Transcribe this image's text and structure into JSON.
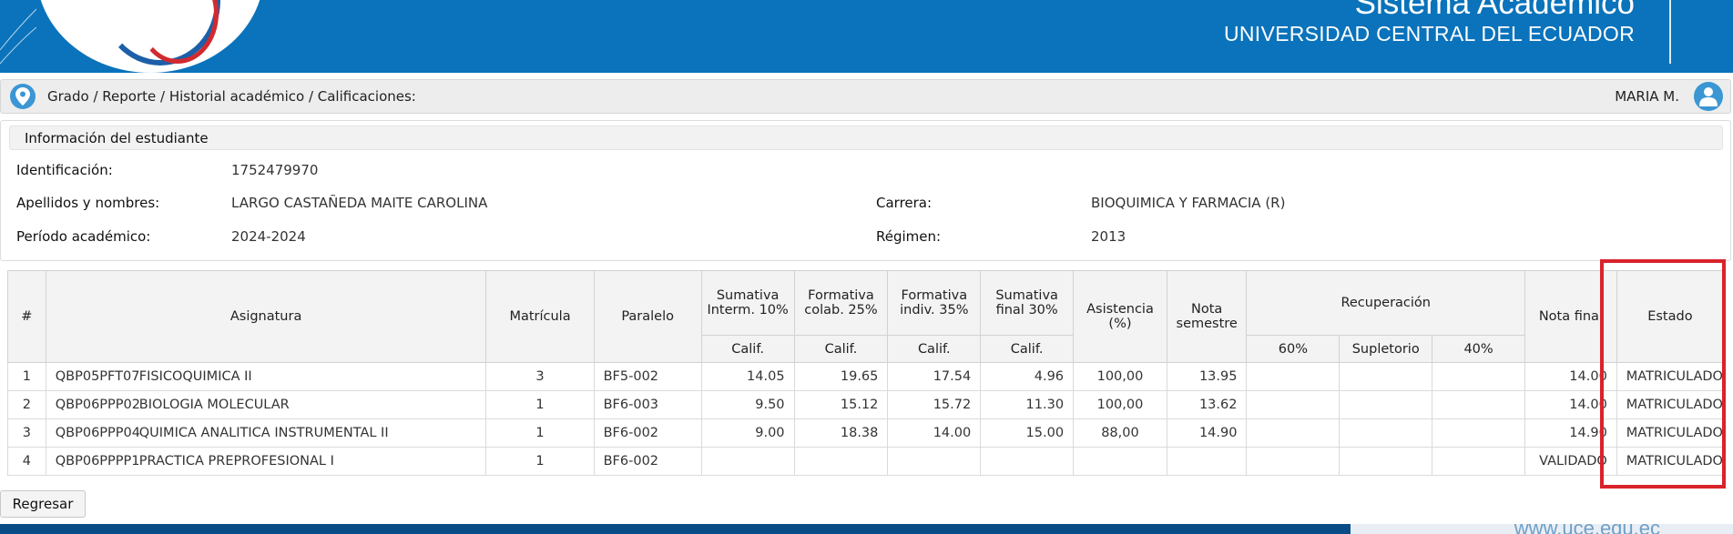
{
  "header": {
    "system_title": "Sistema Académico",
    "university": "UNIVERSIDAD CENTRAL DEL ECUADOR",
    "brand_color": "#0a73bb"
  },
  "breadcrumb": {
    "path": "Grado / Reporte / Historial académico / Calificaciones:",
    "user": "MARIA M."
  },
  "student_info": {
    "section_title": "Información del estudiante",
    "identificacion_label": "Identificación:",
    "identificacion": "1752479970",
    "nombres_label": "Apellidos y nombres:",
    "nombres": "LARGO CASTAÑEDA MAITE CAROLINA",
    "periodo_label": "Período académico:",
    "periodo": "2024-2024",
    "carrera_label": "Carrera:",
    "carrera": "BIOQUIMICA Y FARMACIA (R)",
    "regimen_label": "Régimen:",
    "regimen": "2013"
  },
  "grades_table": {
    "headers": {
      "num": "#",
      "asignatura": "Asignatura",
      "matricula": "Matrícula",
      "paralelo": "Paralelo",
      "sumativa_interm": "Sumativa Interm. 10%",
      "formativa_colab": "Formativa colab. 25%",
      "formativa_indiv": "Formativa indiv. 35%",
      "sumativa_final": "Sumativa final 30%",
      "calif": "Calif.",
      "asistencia": "Asistencia (%)",
      "nota_semestre": "Nota semestre",
      "recuperacion": "Recuperación",
      "rec_60": "60%",
      "rec_supletorio": "Supletorio",
      "rec_40": "40%",
      "nota_final": "Nota final",
      "estado": "Estado"
    },
    "rows": [
      {
        "num": "1",
        "codigo": "QBP05PFT07",
        "asignatura": "FISICOQUIMICA II",
        "matricula": "3",
        "paralelo": "BF5-002",
        "sum_interm": "14.05",
        "form_colab": "19.65",
        "form_indiv": "17.54",
        "sum_final": "4.96",
        "asistencia": "100,00",
        "nota_semestre": "13.95",
        "rec_60": "",
        "rec_sup": "",
        "rec_40": "",
        "nota_final": "14.00",
        "estado": "MATRICULADO"
      },
      {
        "num": "2",
        "codigo": "QBP06PPP02",
        "asignatura": "BIOLOGIA MOLECULAR",
        "matricula": "1",
        "paralelo": "BF6-003",
        "sum_interm": "9.50",
        "form_colab": "15.12",
        "form_indiv": "15.72",
        "sum_final": "11.30",
        "asistencia": "100,00",
        "nota_semestre": "13.62",
        "rec_60": "",
        "rec_sup": "",
        "rec_40": "",
        "nota_final": "14.00",
        "estado": "MATRICULADO"
      },
      {
        "num": "3",
        "codigo": "QBP06PPP04",
        "asignatura": "QUIMICA ANALITICA INSTRUMENTAL II",
        "matricula": "1",
        "paralelo": "BF6-002",
        "sum_interm": "9.00",
        "form_colab": "18.38",
        "form_indiv": "14.00",
        "sum_final": "15.00",
        "asistencia": "88,00",
        "nota_semestre": "14.90",
        "rec_60": "",
        "rec_sup": "",
        "rec_40": "",
        "nota_final": "14.90",
        "estado": "MATRICULADO"
      },
      {
        "num": "4",
        "codigo": "QBP06PPPP1",
        "asignatura": "PRACTICA PREPROFESIONAL I",
        "matricula": "1",
        "paralelo": "BF6-002",
        "sum_interm": "",
        "form_colab": "",
        "form_indiv": "",
        "sum_final": "",
        "asistencia": "",
        "nota_semestre": "",
        "rec_60": "",
        "rec_sup": "",
        "rec_40": "",
        "nota_final": "VALIDADO",
        "estado": "MATRICULADO"
      }
    ]
  },
  "actions": {
    "back_label": "Regresar"
  },
  "footer": {
    "url": "www.uce.edu.ec"
  },
  "annotation_color": "#d9232b"
}
